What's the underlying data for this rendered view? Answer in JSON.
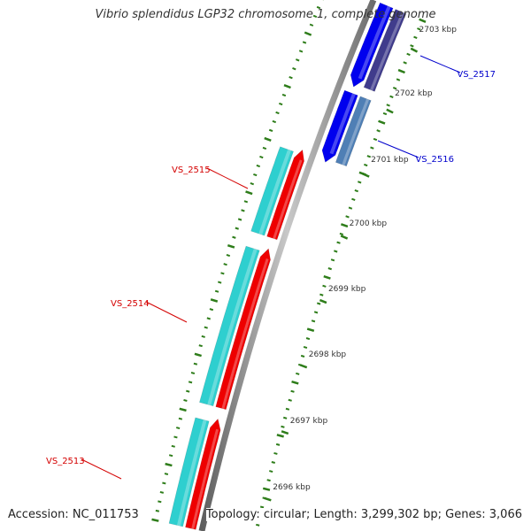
{
  "title": "Vibrio splendidus LGP32 chromosome 1, complete genome",
  "footer": {
    "accession": "Accession: NC_011753",
    "stats": "Topology: circular; Length: 3,299,302 bp; Genes: 3,066"
  },
  "colors": {
    "backbone": "#8a8a8a",
    "tick": "#2e7d1a",
    "forward_gene": "#ee0000",
    "forward_cds": "#2ecfcf",
    "reverse_gene": "#0000ee",
    "reverse_cds": "#403c8c",
    "reverse_cds_light": "#4f7fb5",
    "forward_label": "#d40000",
    "reverse_label": "#0000cc"
  },
  "scale": {
    "tick_labels": [
      "2696 kbp",
      "2697 kbp",
      "2698 kbp",
      "2699 kbp",
      "2700 kbp",
      "2701 kbp",
      "2702 kbp",
      "2703 kbp"
    ]
  },
  "genes": [
    {
      "id": "VS_2513",
      "strand": "forward"
    },
    {
      "id": "VS_2514",
      "strand": "forward"
    },
    {
      "id": "VS_2515",
      "strand": "forward"
    },
    {
      "id": "VS_2516",
      "strand": "reverse"
    },
    {
      "id": "VS_2517",
      "strand": "reverse"
    }
  ]
}
